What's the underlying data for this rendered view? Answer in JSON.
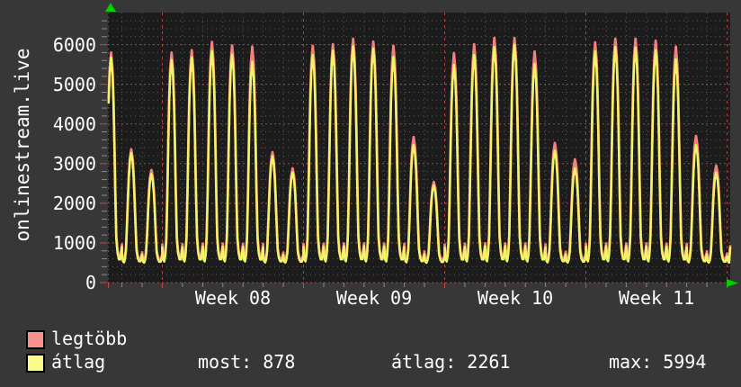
{
  "page": {
    "bg": "#373737",
    "plot_bg": "#1c1c1c",
    "text_color": "#ffffff"
  },
  "y_axis_title": "onlinestream.live",
  "legend": {
    "series": [
      {
        "label": "legtöbb",
        "swatch_color": "#f89090"
      },
      {
        "label": "átlag",
        "swatch_color": "#fbfb8c"
      }
    ],
    "stats": [
      {
        "text": "most: 878"
      },
      {
        "text": "átlag: 2261"
      },
      {
        "text": "max: 5994"
      }
    ]
  },
  "accent_colors": {
    "arrow_green": "#00cc00",
    "grid_major_red": "#b24444",
    "grid_minor_gray": "#5c5c5c",
    "tick_gray": "#8a8a8a",
    "tick_red": "#cc4444"
  },
  "chart_data": {
    "type": "line",
    "title": "",
    "ylabel": "onlinestream.live",
    "xlabel": "",
    "ylim": [
      0,
      6805
    ],
    "y_ticks": [
      0,
      1000,
      2000,
      3000,
      4000,
      5000,
      6000
    ],
    "y_minor_step": 200,
    "x_unit": "day",
    "x_week_labels": [
      "Week 08",
      "Week 09",
      "Week 10",
      "Week 11"
    ],
    "days_shown": 31,
    "first_monday_day_index": 3,
    "legend_position": "bottom-left",
    "grid": {
      "major_every": 1000,
      "minor_every": 200,
      "vertical_minor": "day",
      "vertical_major": "week"
    },
    "series": [
      {
        "name": "legtöbb",
        "color": "#f58080",
        "trough": 540,
        "current": 920,
        "day_peaks": [
          5800,
          3360,
          2840,
          5800,
          5860,
          6070,
          5980,
          5950,
          3290,
          2880,
          5970,
          6010,
          6150,
          6080,
          5970,
          3670,
          2540,
          5790,
          6010,
          6170,
          6170,
          5830,
          3520,
          3110,
          6060,
          6150,
          6150,
          6100,
          5950,
          3700,
          2950
        ]
      },
      {
        "name": "átlag",
        "color": "#f3f366",
        "trough": 480,
        "current": 878,
        "day_peaks": [
          5680,
          3270,
          2740,
          5610,
          5680,
          5840,
          5750,
          5570,
          3180,
          2780,
          5740,
          5850,
          5960,
          5900,
          5690,
          3470,
          2450,
          5490,
          5740,
          5940,
          5994,
          5510,
          3330,
          2880,
          5830,
          5940,
          5920,
          5860,
          5630,
          3470,
          2770
        ]
      }
    ],
    "stats": {
      "most": 878,
      "atlag": 2261,
      "max": 5994
    },
    "intraday_profile": [
      [
        0.0,
        0.08
      ],
      [
        0.05,
        0.02
      ],
      [
        0.1,
        0.01
      ],
      [
        0.15,
        0.04
      ],
      [
        0.2,
        0.12
      ],
      [
        0.25,
        0.34
      ],
      [
        0.3,
        0.6
      ],
      [
        0.34,
        0.78
      ],
      [
        0.39,
        0.92
      ],
      [
        0.46,
        1.0
      ],
      [
        0.53,
        0.92
      ],
      [
        0.58,
        0.78
      ],
      [
        0.62,
        0.6
      ],
      [
        0.67,
        0.34
      ],
      [
        0.72,
        0.12
      ],
      [
        0.78,
        0.05
      ],
      [
        0.85,
        0.02
      ],
      [
        0.92,
        0.02
      ],
      [
        1.0,
        0.08
      ]
    ]
  }
}
